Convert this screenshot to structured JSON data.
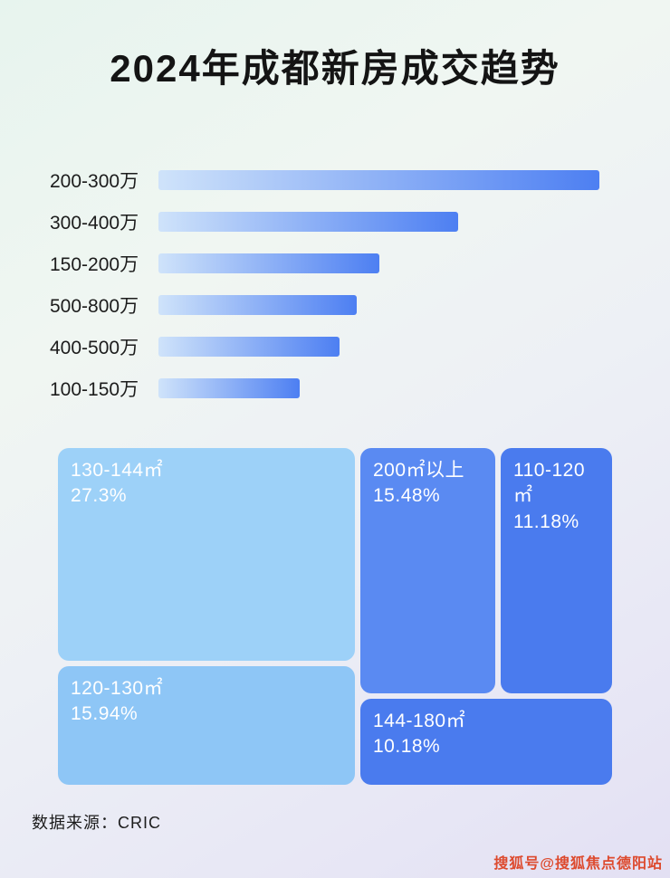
{
  "title": "2024年成都新房成交趋势",
  "footer": {
    "source": "数据来源：CRIC",
    "watermark": "搜狐号@搜狐焦点德阳站"
  },
  "chart_data": [
    {
      "type": "bar",
      "orientation": "horizontal",
      "categories": [
        "200-300万",
        "300-400万",
        "150-200万",
        "500-800万",
        "400-500万",
        "100-150万"
      ],
      "values_pct_of_longest": [
        100,
        68,
        50,
        45,
        41,
        32
      ],
      "note": "no numeric axis shown; bar lengths estimated as percent of longest bar",
      "bar_gradient": [
        "#cfe3fa",
        "#4d7ff2"
      ],
      "grid": false,
      "legend": false
    },
    {
      "type": "treemap",
      "items": [
        {
          "label": "130-144㎡",
          "percent": "27.3%",
          "value": 27.3,
          "color": "#9dd1f8"
        },
        {
          "label": "120-130㎡",
          "percent": "15.94%",
          "value": 15.94,
          "color": "#8ec6f6"
        },
        {
          "label": "200㎡以上",
          "percent": "15.48%",
          "value": 15.48,
          "color": "#5a8af2"
        },
        {
          "label": "110-120㎡",
          "percent": "11.18%",
          "value": 11.18,
          "color": "#4a7bee"
        },
        {
          "label": "144-180㎡",
          "percent": "10.18%",
          "value": 10.18,
          "color": "#4a7bee"
        }
      ]
    }
  ]
}
